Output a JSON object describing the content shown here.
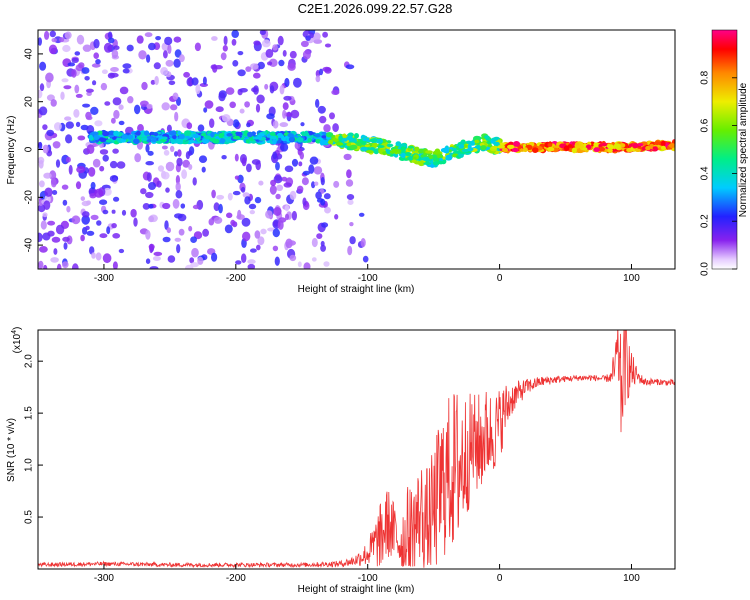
{
  "title": "C2E1.2026.099.22.57.G28",
  "colors": {
    "snr_line": "#ee3333",
    "axis": "#000000",
    "background": "#ffffff"
  },
  "chart_data": [
    {
      "type": "heatmap",
      "xlabel": "Height of straight line (km)",
      "ylabel": "Frequency (Hz)",
      "xlim": [
        -350,
        133
      ],
      "ylim": [
        -50,
        50
      ],
      "x_ticks": [
        "-300",
        "-200",
        "-100",
        "0",
        "100"
      ],
      "x_tick_values": [
        -300,
        -200,
        -100,
        0,
        100
      ],
      "y_ticks": [
        "-40",
        "-20",
        "0",
        "20",
        "40"
      ],
      "y_tick_values": [
        -40,
        -20,
        0,
        20,
        40
      ],
      "colorbar": {
        "label": "Normalized spectral amplitude",
        "ticks": [
          "0.0",
          "0.2",
          "0.4",
          "0.6",
          "0.8"
        ],
        "tick_values": [
          0.0,
          0.2,
          0.4,
          0.6,
          0.8
        ],
        "range": [
          0,
          1
        ]
      },
      "signal_trace": {
        "description": "dominant frequency band",
        "points": [
          [
            -310,
            5
          ],
          [
            -260,
            5
          ],
          [
            -240,
            5
          ],
          [
            -200,
            5
          ],
          [
            -160,
            5
          ],
          [
            -140,
            5
          ],
          [
            -120,
            4
          ],
          [
            -100,
            2
          ],
          [
            -80,
            0
          ],
          [
            -60,
            -3
          ],
          [
            -50,
            -4
          ],
          [
            -40,
            -2
          ],
          [
            -30,
            0
          ],
          [
            -20,
            2
          ],
          [
            -10,
            3
          ],
          [
            0,
            1
          ],
          [
            20,
            1
          ],
          [
            50,
            1
          ],
          [
            80,
            1
          ],
          [
            100,
            1
          ],
          [
            133,
            2
          ]
        ]
      }
    },
    {
      "type": "line",
      "xlabel": "Height of straight line (km)",
      "ylabel": "SNR (10 * v/v)",
      "y_scale_label": "(x10",
      "y_scale_exp": "4",
      "scale_factor": 10000,
      "xlim": [
        -350,
        133
      ],
      "ylim": [
        0,
        2.3
      ],
      "x_ticks": [
        "-300",
        "-200",
        "-100",
        "0",
        "100"
      ],
      "x_tick_values": [
        -300,
        -200,
        -100,
        0,
        100
      ],
      "y_ticks": [
        "0.5",
        "1.0",
        "1.5",
        "2.0"
      ],
      "y_tick_values": [
        0.5,
        1.0,
        1.5,
        2.0
      ],
      "series": [
        {
          "x": [
            -350,
            -300,
            -250,
            -200,
            -150,
            -120,
            -110,
            -100,
            -90,
            -85,
            -80,
            -75,
            -70,
            -65,
            -60,
            -55,
            -50,
            -45,
            -40,
            -35,
            -30,
            -25,
            -20,
            -15,
            -10,
            -5,
            0,
            5,
            10,
            20,
            30,
            40,
            50,
            60,
            70,
            80,
            85,
            88,
            90,
            92,
            95,
            100,
            105,
            110,
            120,
            133
          ],
          "y": [
            0.04,
            0.05,
            0.04,
            0.04,
            0.04,
            0.05,
            0.08,
            0.15,
            0.3,
            0.45,
            0.35,
            0.25,
            0.35,
            0.4,
            0.55,
            0.45,
            0.55,
            0.75,
            0.9,
            0.95,
            1.0,
            1.1,
            1.2,
            1.2,
            1.3,
            1.3,
            1.4,
            1.55,
            1.65,
            1.75,
            1.8,
            1.82,
            1.83,
            1.84,
            1.84,
            1.83,
            1.85,
            1.95,
            2.1,
            1.7,
            2.0,
            1.9,
            1.85,
            1.8,
            1.8,
            1.79
          ],
          "spread": [
            0.02,
            0.02,
            0.02,
            0.02,
            0.02,
            0.03,
            0.05,
            0.12,
            0.35,
            0.35,
            0.3,
            0.3,
            0.45,
            0.45,
            0.5,
            0.55,
            0.6,
            0.75,
            0.75,
            0.8,
            0.8,
            0.6,
            0.5,
            0.5,
            0.45,
            0.4,
            0.35,
            0.25,
            0.15,
            0.08,
            0.05,
            0.04,
            0.03,
            0.03,
            0.03,
            0.03,
            0.06,
            0.35,
            0.3,
            0.55,
            0.45,
            0.2,
            0.06,
            0.04,
            0.03,
            0.03
          ]
        }
      ]
    }
  ]
}
